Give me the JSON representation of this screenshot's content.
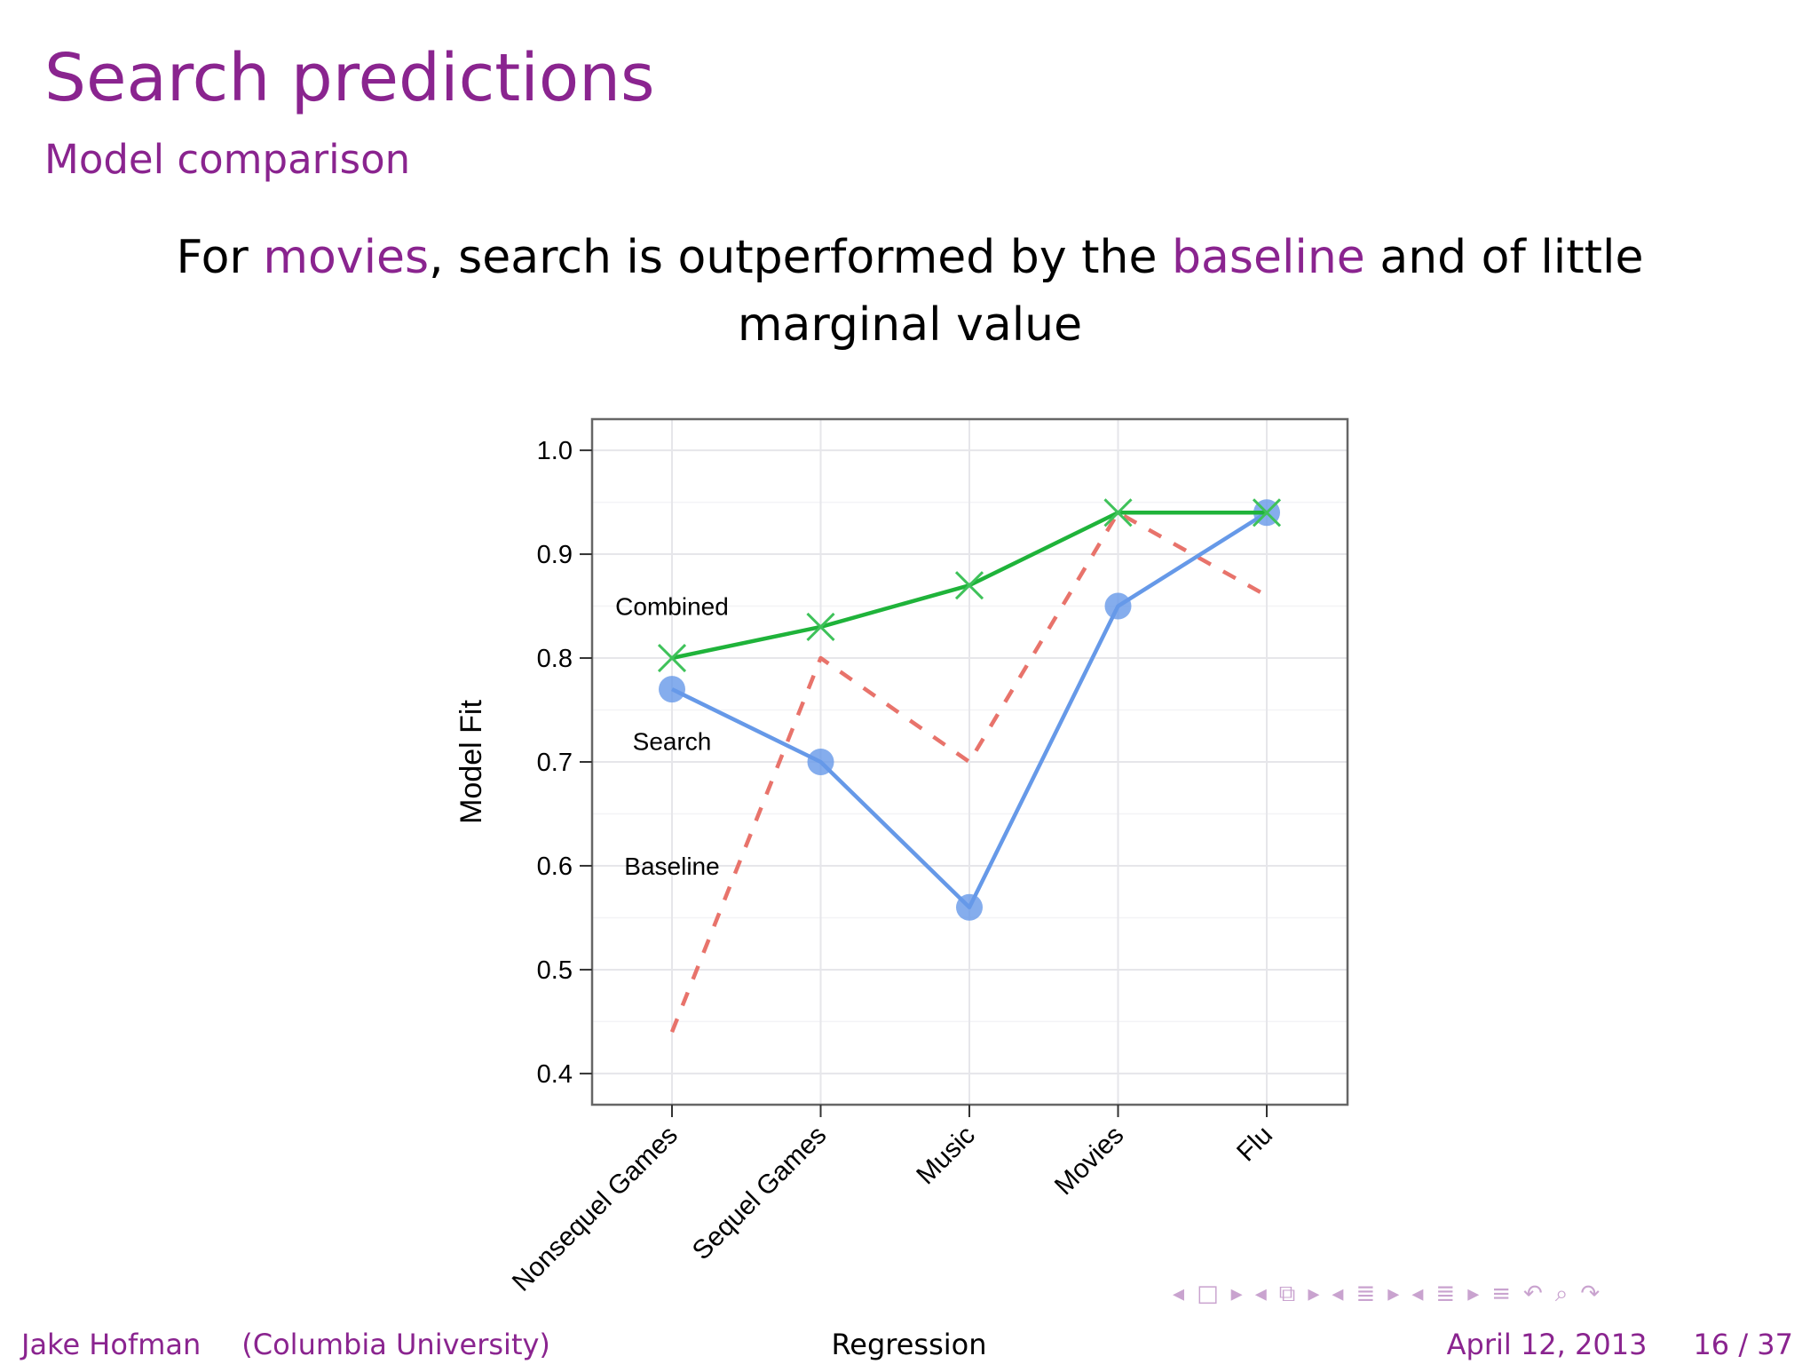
{
  "slide": {
    "title": "Search predictions",
    "subtitle": "Model comparison",
    "headline": {
      "part1": "For ",
      "accent1": "movies",
      "part2": ", search is outperformed by the ",
      "accent2": "baseline",
      "part3": " and of little marginal value"
    }
  },
  "colors": {
    "accent": "#8a248f",
    "combined": "#1fb33a",
    "search": "#6699e8",
    "baseline": "#e8736b"
  },
  "chart_data": {
    "type": "line",
    "categories": [
      "Nonsequel Games",
      "Sequel Games",
      "Music",
      "Movies",
      "Flu"
    ],
    "ylabel": "Model Fit",
    "xlabel": "",
    "ylim": [
      0.37,
      1.03
    ],
    "yticks": [
      "0.4",
      "0.5",
      "0.6",
      "0.7",
      "0.8",
      "0.9",
      "1.0"
    ],
    "grid": true,
    "series": [
      {
        "name": "Combined",
        "values": [
          0.8,
          0.83,
          0.87,
          0.94,
          0.94
        ],
        "marker": "x",
        "style": "solid"
      },
      {
        "name": "Search",
        "values": [
          0.77,
          0.7,
          0.56,
          0.85,
          0.94
        ],
        "marker": "circle",
        "style": "solid"
      },
      {
        "name": "Baseline",
        "values": [
          0.44,
          0.8,
          0.7,
          0.94,
          0.86
        ],
        "marker": "none",
        "style": "dashed"
      }
    ],
    "label_positions": {
      "Combined": {
        "x_index": 0,
        "y": 0.85
      },
      "Search": {
        "x_index": 0,
        "y": 0.72
      },
      "Baseline": {
        "x_index": 0,
        "y": 0.6
      }
    }
  },
  "footer": {
    "author": "Jake Hofman",
    "affiliation": "(Columbia University)",
    "topic": "Regression",
    "date": "April 12, 2013",
    "page": "16 / 37"
  },
  "nav": [
    "◂",
    "□",
    "▸",
    "◂",
    "⧉",
    "▸",
    "◂",
    "≣",
    "▸",
    "◂",
    "≣",
    "▸",
    "≡",
    "↶",
    "⌕",
    "↷"
  ]
}
